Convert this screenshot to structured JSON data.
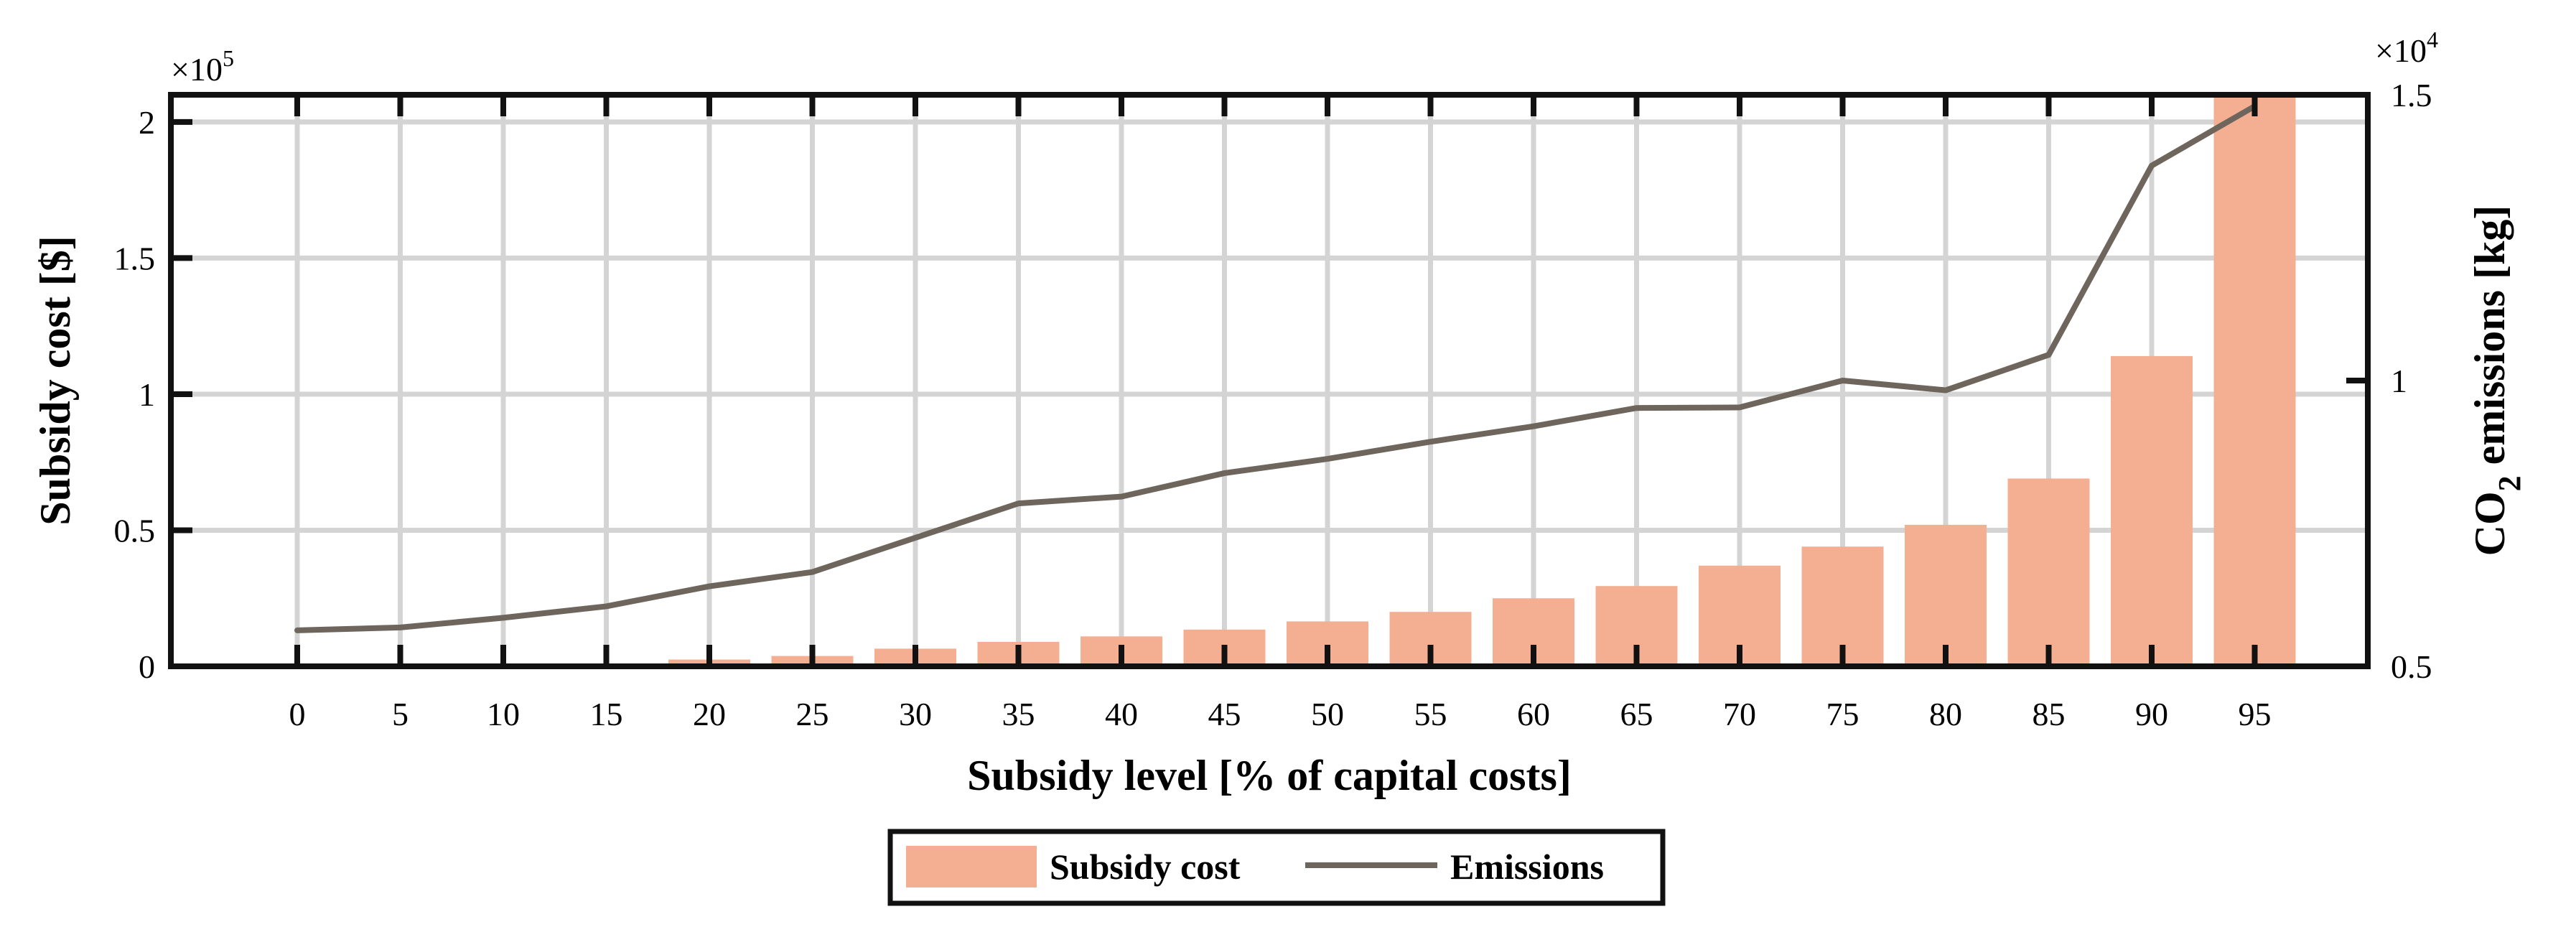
{
  "chart_data": {
    "type": "bar+line",
    "categories": [
      "0",
      "5",
      "10",
      "15",
      "20",
      "25",
      "30",
      "35",
      "40",
      "45",
      "50",
      "55",
      "60",
      "65",
      "70",
      "75",
      "80",
      "85",
      "90",
      "95"
    ],
    "series": [
      {
        "name": "Subsidy cost",
        "type": "bar",
        "axis": "left",
        "color": "#F4AF93",
        "values": [
          0,
          0,
          0,
          1000,
          2500,
          3800,
          6500,
          9000,
          11000,
          13500,
          16500,
          20000,
          25000,
          29500,
          37000,
          44000,
          52000,
          69000,
          114000,
          210000
        ]
      },
      {
        "name": "Emissions",
        "type": "line",
        "axis": "right",
        "color": "#6E665D",
        "values": [
          5630,
          5680,
          5850,
          6050,
          6400,
          6650,
          7250,
          7850,
          7970,
          8380,
          8630,
          8930,
          9200,
          9520,
          9530,
          10000,
          9830,
          10450,
          13760,
          14800
        ]
      }
    ],
    "xlabel": "Subsidy level [% of capital costs]",
    "ylabel_left": "Subsidy cost [$]",
    "ylabel_right_main": "CO",
    "ylabel_right_sub": "2",
    "ylabel_right_rest": " emissions [kg]",
    "ylim_left": [
      0,
      210000
    ],
    "ylim_right": [
      5000,
      15000
    ],
    "left_ticks": [
      0,
      50000,
      100000,
      150000,
      200000
    ],
    "left_tick_labels": [
      "0",
      "0.5",
      "1",
      "1.5",
      "2"
    ],
    "right_ticks": [
      5000,
      10000,
      15000
    ],
    "right_tick_labels": [
      "0.5",
      "1",
      "1.5"
    ],
    "left_exponent_base": "×10",
    "left_exponent_power": "5",
    "right_exponent_base": "×10",
    "right_exponent_power": "4",
    "grid": true,
    "legend_position": "bottom-center",
    "legend": [
      {
        "label": "Subsidy cost",
        "kind": "bar",
        "color": "#F4AF93"
      },
      {
        "label": "Emissions",
        "kind": "line",
        "color": "#6E665D"
      }
    ]
  }
}
